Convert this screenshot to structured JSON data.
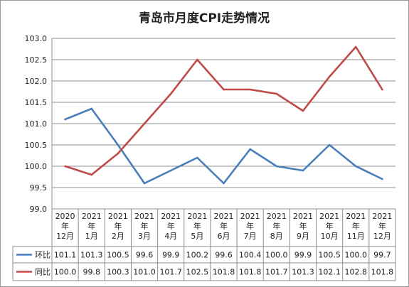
{
  "chart_data": {
    "type": "line",
    "title": "青岛市月度CPI走势情况",
    "ylim": [
      99.0,
      103.0
    ],
    "yticks": [
      "103.0",
      "102.5",
      "102.0",
      "101.5",
      "101.0",
      "100.5",
      "100.0",
      "99.5",
      "99.0"
    ],
    "grid": true,
    "legend": "data-table-left",
    "categories": [
      {
        "year": "2020",
        "unit": "年",
        "month": "12月"
      },
      {
        "year": "2021",
        "unit": "年",
        "month": "1月"
      },
      {
        "year": "2021",
        "unit": "年",
        "month": "2月"
      },
      {
        "year": "2021",
        "unit": "年",
        "month": "3月"
      },
      {
        "year": "2021",
        "unit": "年",
        "month": "4月"
      },
      {
        "year": "2021",
        "unit": "年",
        "month": "5月"
      },
      {
        "year": "2021",
        "unit": "年",
        "month": "6月"
      },
      {
        "year": "2021",
        "unit": "年",
        "month": "7月"
      },
      {
        "year": "2021",
        "unit": "年",
        "month": "8月"
      },
      {
        "year": "2021",
        "unit": "年",
        "month": "9月"
      },
      {
        "year": "2021",
        "unit": "年",
        "month": "10月"
      },
      {
        "year": "2021",
        "unit": "年",
        "month": "11月"
      },
      {
        "year": "2021",
        "unit": "年",
        "month": "12月"
      }
    ],
    "series": [
      {
        "name": "环比",
        "color": "#4a7ebb",
        "values": [
          101.1,
          101.35,
          100.5,
          99.6,
          99.9,
          100.2,
          99.6,
          100.4,
          100.0,
          99.9,
          100.5,
          100.0,
          99.7
        ],
        "labels": [
          "101.1",
          "101.3",
          "100.5",
          "99.6",
          "99.9",
          "100.2",
          "99.6",
          "100.4",
          "100.0",
          "99.9",
          "100.5",
          "100.0",
          "99.7"
        ]
      },
      {
        "name": "同比",
        "color": "#be4b48",
        "values": [
          100.0,
          99.8,
          100.3,
          101.0,
          101.7,
          102.5,
          101.8,
          101.8,
          101.7,
          101.3,
          102.1,
          102.8,
          101.8
        ],
        "labels": [
          "100.0",
          "99.8",
          "100.3",
          "101.0",
          "101.7",
          "102.5",
          "101.8",
          "101.8",
          "101.7",
          "101.3",
          "102.1",
          "102.8",
          "101.8"
        ]
      }
    ]
  }
}
